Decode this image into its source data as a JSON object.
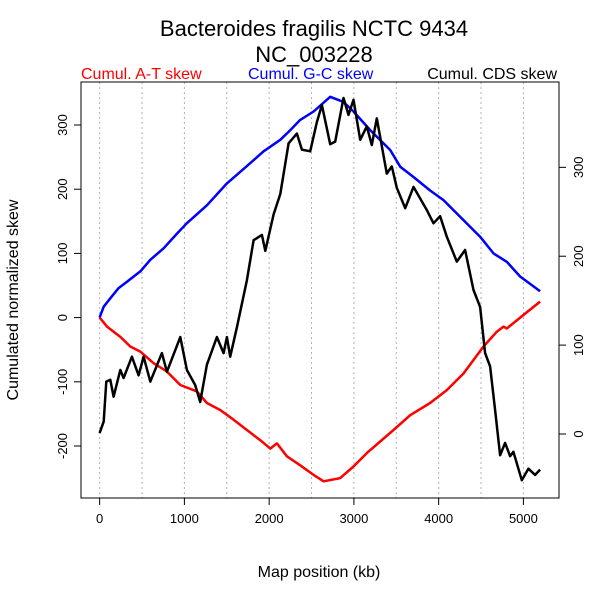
{
  "chart_data": {
    "type": "line",
    "title": "Bacteroides fragilis NCTC 9434",
    "subtitle": "NC_003228",
    "xlabel": "Map position (kb)",
    "ylabel": "Cumulated normalized skew",
    "xlim": [
      -220,
      5420
    ],
    "ylim_left": [
      -281,
      367
    ],
    "ylim_right": [
      -72,
      396
    ],
    "x_ticks": [
      0,
      1000,
      2000,
      3000,
      4000,
      5000
    ],
    "y_ticks_left": [
      -200,
      -100,
      0,
      100,
      200,
      300
    ],
    "y_ticks_right": [
      0,
      100,
      200,
      300
    ],
    "x_grid": [
      0,
      500,
      1000,
      1500,
      2000,
      2500,
      3000,
      3500,
      4000,
      4500,
      5000
    ],
    "grid": "vertical dotted",
    "legend_placement": "top",
    "series": [
      {
        "name": "Cumul. A-T skew",
        "color": "#ff0000",
        "axis": "left",
        "x": [
          0,
          87,
          244,
          362,
          480,
          637,
          794,
          952,
          1148,
          1266,
          1423,
          1580,
          1738,
          1895,
          2013,
          2091,
          2209,
          2366,
          2524,
          2642,
          2838,
          2995,
          3152,
          3310,
          3467,
          3664,
          3899,
          4096,
          4293,
          4529,
          4686,
          4765,
          4804,
          5000,
          5197
        ],
        "y": [
          0,
          -14,
          -30,
          -45,
          -53,
          -71,
          -84,
          -105,
          -115,
          -133,
          -144,
          -159,
          -175,
          -191,
          -204,
          -196,
          -216,
          -230,
          -245,
          -255,
          -250,
          -232,
          -211,
          -193,
          -175,
          -152,
          -133,
          -113,
          -87,
          -45,
          -22,
          -14,
          -17,
          4,
          25
        ]
      },
      {
        "name": "Cumul. G-C skew",
        "color": "#0000ff",
        "axis": "left",
        "x": [
          0,
          48,
          126,
          224,
          323,
          480,
          598,
          755,
          914,
          1030,
          1266,
          1502,
          1738,
          1934,
          2131,
          2249,
          2366,
          2524,
          2720,
          2877,
          2995,
          3192,
          3428,
          3546,
          3703,
          3899,
          4057,
          4253,
          4489,
          4647,
          4804,
          4961,
          5197
        ],
        "y": [
          0,
          17,
          30,
          46,
          56,
          72,
          90,
          108,
          131,
          147,
          175,
          209,
          236,
          259,
          277,
          292,
          308,
          321,
          344,
          336,
          321,
          292,
          261,
          235,
          219,
          198,
          183,
          157,
          126,
          100,
          87,
          64,
          41
        ]
      },
      {
        "name": "Cumul. CDS skew",
        "color": "#000000",
        "axis": "right",
        "x": [
          0,
          48,
          79,
          126,
          165,
          244,
          283,
          381,
          460,
          519,
          598,
          735,
          794,
          952,
          1030,
          1128,
          1187,
          1266,
          1384,
          1462,
          1502,
          1541,
          1620,
          1738,
          1817,
          1915,
          1954,
          2053,
          2131,
          2229,
          2327,
          2386,
          2484,
          2563,
          2622,
          2720,
          2779,
          2877,
          2936,
          2995,
          3074,
          3152,
          3211,
          3270,
          3388,
          3447,
          3506,
          3605,
          3703,
          3860,
          3939,
          4017,
          4096,
          4214,
          4312,
          4411,
          4489,
          4548,
          4607,
          4666,
          4725,
          4784,
          4843,
          4882,
          4981,
          5059,
          5138,
          5197
        ],
        "y": [
          1,
          14,
          59,
          61,
          42,
          72,
          63,
          87,
          66,
          87,
          59,
          91,
          70,
          109,
          72,
          55,
          36,
          78,
          109,
          91,
          109,
          87,
          120,
          173,
          218,
          224,
          206,
          247,
          270,
          327,
          338,
          320,
          318,
          351,
          370,
          326,
          329,
          378,
          359,
          376,
          331,
          346,
          325,
          355,
          293,
          301,
          277,
          254,
          278,
          252,
          237,
          245,
          222,
          194,
          207,
          162,
          143,
          91,
          76,
          27,
          -24,
          -10,
          -25,
          -20,
          -52,
          -39,
          -46,
          -40
        ]
      }
    ]
  }
}
